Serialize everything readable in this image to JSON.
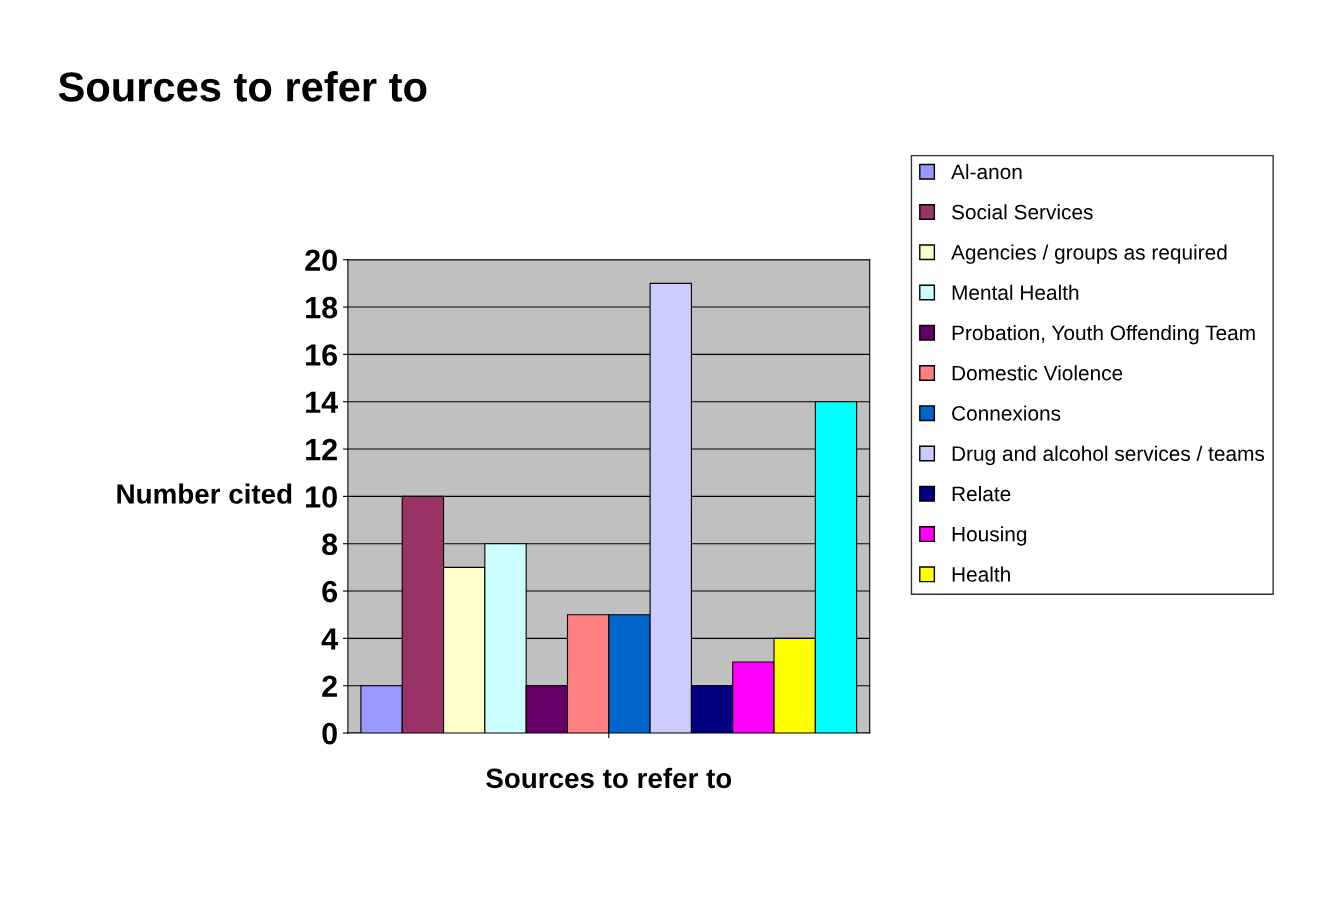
{
  "chart_data": {
    "type": "bar",
    "title": "Sources to refer to",
    "xlabel": "Sources to refer to",
    "ylabel": "Number cited",
    "categories": [
      null
    ],
    "series": [
      {
        "name": "Al-anon",
        "color": "#9999ff",
        "values": [
          2
        ]
      },
      {
        "name": "Social Services",
        "color": "#993366",
        "values": [
          10
        ]
      },
      {
        "name": "Agencies / groups as required",
        "color": "#ffffcc",
        "values": [
          7
        ]
      },
      {
        "name": "Mental Health",
        "color": "#ccffff",
        "values": [
          8
        ]
      },
      {
        "name": "Probation, Youth Offending Team",
        "color": "#660066",
        "values": [
          2
        ]
      },
      {
        "name": "Domestic Violence",
        "color": "#ff8080",
        "values": [
          5
        ]
      },
      {
        "name": "Connexions",
        "color": "#0066cc",
        "values": [
          5
        ]
      },
      {
        "name": "Drug and alcohol services / teams",
        "color": "#ccccff",
        "values": [
          19
        ]
      },
      {
        "name": "Relate",
        "color": "#000080",
        "values": [
          2
        ]
      },
      {
        "name": "Housing",
        "color": "#ff00ff",
        "values": [
          3
        ]
      },
      {
        "name": "Health",
        "color": "#ffff00",
        "values": [
          4
        ]
      },
      {
        "color": "#00ffff",
        "values": [
          14
        ]
      }
    ],
    "ylim": [
      0,
      20
    ],
    "yticks": [
      0,
      2,
      4,
      6,
      8,
      10,
      12,
      14,
      16,
      18,
      20
    ],
    "grid": "y",
    "legend": "right"
  }
}
